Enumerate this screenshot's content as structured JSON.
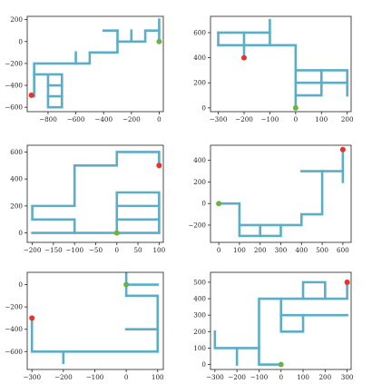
{
  "colors": {
    "path": "#5cadc8",
    "start": "#6db33f",
    "end": "#e8322b"
  },
  "chart_data": [
    {
      "type": "line",
      "xlim": [
        -950,
        30
      ],
      "ylim": [
        -640,
        230
      ],
      "xticks": [
        -800,
        -600,
        -400,
        -200,
        0
      ],
      "yticks": [
        -600,
        -400,
        -200,
        0,
        200
      ],
      "grid": false,
      "segments": [
        [
          [
            0,
            200
          ],
          [
            0,
            -10
          ]
        ],
        [
          [
            0,
            100
          ],
          [
            -100,
            100
          ],
          [
            -100,
            0
          ],
          [
            -300,
            0
          ]
        ],
        [
          [
            -200,
            100
          ],
          [
            -200,
            0
          ]
        ],
        [
          [
            -300,
            100
          ],
          [
            -400,
            100
          ]
        ],
        [
          [
            -300,
            100
          ],
          [
            -300,
            -100
          ],
          [
            -500,
            -100
          ],
          [
            -500,
            -200
          ],
          [
            -900,
            -200
          ],
          [
            -900,
            -500
          ]
        ],
        [
          [
            -600,
            -100
          ],
          [
            -600,
            -200
          ]
        ],
        [
          [
            -900,
            -300
          ],
          [
            -700,
            -300
          ],
          [
            -700,
            -600
          ],
          [
            -800,
            -600
          ],
          [
            -800,
            -300
          ]
        ],
        [
          [
            -800,
            -400
          ],
          [
            -700,
            -400
          ]
        ],
        [
          [
            -800,
            -500
          ],
          [
            -700,
            -500
          ]
        ]
      ],
      "start": [
        0,
        0
      ],
      "end": [
        -920,
        -490
      ]
    },
    {
      "type": "line",
      "xlim": [
        -330,
        215
      ],
      "ylim": [
        -30,
        730
      ],
      "xticks": [
        -300,
        -200,
        -100,
        0,
        100,
        200
      ],
      "yticks": [
        0,
        200,
        400,
        600
      ],
      "grid": false,
      "segments": [
        [
          [
            -300,
            500
          ],
          [
            0,
            500
          ],
          [
            0,
            10
          ]
        ],
        [
          [
            -300,
            600
          ],
          [
            -100,
            600
          ]
        ],
        [
          [
            -300,
            500
          ],
          [
            -300,
            600
          ]
        ],
        [
          [
            -200,
            600
          ],
          [
            -200,
            400
          ]
        ],
        [
          [
            -100,
            700
          ],
          [
            -100,
            500
          ]
        ],
        [
          [
            0,
            300
          ],
          [
            200,
            300
          ],
          [
            200,
            100
          ]
        ],
        [
          [
            0,
            200
          ],
          [
            200,
            200
          ]
        ],
        [
          [
            0,
            100
          ],
          [
            100,
            100
          ],
          [
            100,
            300
          ]
        ]
      ],
      "start": [
        0,
        0
      ],
      "end": [
        -200,
        400
      ]
    },
    {
      "type": "line",
      "xlim": [
        -212,
        110
      ],
      "ylim": [
        -70,
        650
      ],
      "xticks": [
        -200,
        -150,
        -100,
        -50,
        0,
        50,
        100
      ],
      "yticks": [
        0,
        200,
        400,
        600
      ],
      "grid": false,
      "segments": [
        [
          [
            100,
            500
          ],
          [
            100,
            600
          ],
          [
            0,
            600
          ],
          [
            0,
            500
          ],
          [
            -100,
            500
          ],
          [
            -100,
            200
          ],
          [
            -200,
            200
          ],
          [
            -200,
            100
          ],
          [
            -100,
            100
          ],
          [
            -100,
            0
          ]
        ],
        [
          [
            -200,
            0
          ],
          [
            100,
            0
          ]
        ],
        [
          [
            0,
            0
          ],
          [
            0,
            300
          ],
          [
            100,
            300
          ],
          [
            100,
            0
          ]
        ],
        [
          [
            0,
            100
          ],
          [
            100,
            100
          ]
        ],
        [
          [
            0,
            200
          ],
          [
            100,
            200
          ]
        ]
      ],
      "start": [
        0,
        0
      ],
      "end": [
        100,
        500
      ]
    },
    {
      "type": "line",
      "xlim": [
        -40,
        640
      ],
      "ylim": [
        -360,
        540
      ],
      "xticks": [
        0,
        100,
        200,
        300,
        400,
        500,
        600
      ],
      "yticks": [
        -200,
        0,
        200,
        400
      ],
      "grid": false,
      "segments": [
        [
          [
            0,
            0
          ],
          [
            100,
            0
          ],
          [
            100,
            -300
          ],
          [
            300,
            -300
          ],
          [
            300,
            -200
          ]
        ],
        [
          [
            100,
            -200
          ],
          [
            400,
            -200
          ],
          [
            400,
            -100
          ],
          [
            500,
            -100
          ],
          [
            500,
            300
          ],
          [
            400,
            300
          ]
        ],
        [
          [
            200,
            -200
          ],
          [
            200,
            -300
          ]
        ],
        [
          [
            500,
            300
          ],
          [
            600,
            300
          ]
        ],
        [
          [
            600,
            500
          ],
          [
            600,
            200
          ]
        ]
      ],
      "start": [
        0,
        0
      ],
      "end": [
        600,
        500
      ]
    },
    {
      "type": "line",
      "xlim": [
        -315,
        118
      ],
      "ylim": [
        -760,
        110
      ],
      "xticks": [
        -300,
        -200,
        -100,
        0,
        100
      ],
      "yticks": [
        -600,
        -400,
        -200,
        0
      ],
      "grid": false,
      "segments": [
        [
          [
            0,
            100
          ],
          [
            0,
            -100
          ],
          [
            100,
            -100
          ],
          [
            100,
            -600
          ],
          [
            -300,
            -600
          ],
          [
            -300,
            -300
          ]
        ],
        [
          [
            0,
            0
          ],
          [
            100,
            0
          ]
        ],
        [
          [
            0,
            -400
          ],
          [
            100,
            -400
          ]
        ],
        [
          [
            -200,
            -600
          ],
          [
            -200,
            -700
          ]
        ]
      ],
      "start": [
        0,
        0
      ],
      "end": [
        -300,
        -300
      ]
    },
    {
      "type": "line",
      "xlim": [
        -320,
        318
      ],
      "ylim": [
        -30,
        560
      ],
      "xticks": [
        -300,
        -200,
        -100,
        0,
        100,
        200,
        300
      ],
      "yticks": [
        0,
        100,
        200,
        300,
        400,
        500
      ],
      "grid": false,
      "segments": [
        [
          [
            0,
            0
          ],
          [
            -100,
            0
          ],
          [
            -100,
            400
          ],
          [
            300,
            400
          ],
          [
            300,
            500
          ]
        ],
        [
          [
            -300,
            200
          ],
          [
            -300,
            100
          ],
          [
            -100,
            100
          ]
        ],
        [
          [
            -200,
            100
          ],
          [
            -200,
            0
          ]
        ],
        [
          [
            0,
            400
          ],
          [
            0,
            200
          ],
          [
            100,
            200
          ],
          [
            100,
            300
          ]
        ],
        [
          [
            0,
            300
          ],
          [
            300,
            300
          ]
        ],
        [
          [
            100,
            400
          ],
          [
            100,
            500
          ],
          [
            200,
            500
          ],
          [
            200,
            400
          ]
        ]
      ],
      "start": [
        0,
        0
      ],
      "end": [
        300,
        500
      ]
    }
  ]
}
